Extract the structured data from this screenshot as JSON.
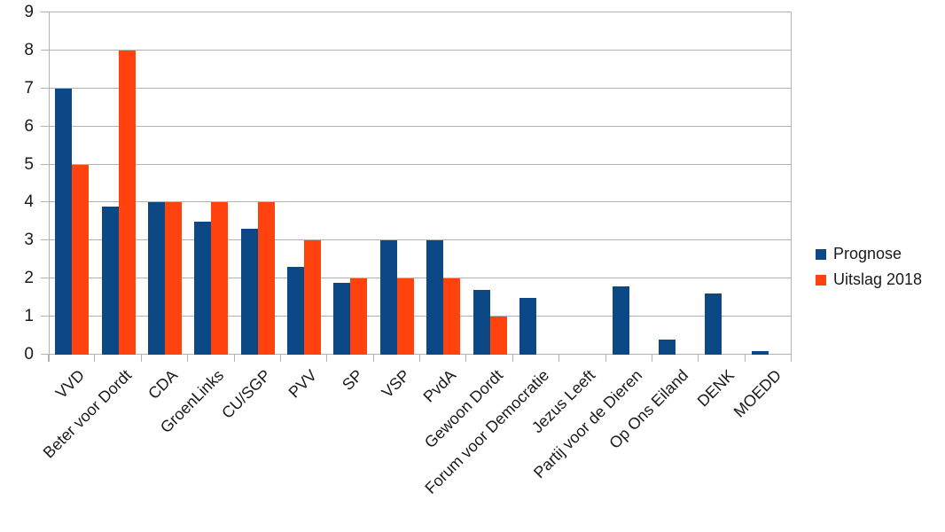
{
  "chart_data": {
    "type": "bar",
    "title": "",
    "xlabel": "",
    "ylabel": "",
    "categories": [
      "VVD",
      "Beter voor Dordt",
      "CDA",
      "GroenLinks",
      "CU/SGP",
      "PVV",
      "SP",
      "VSP",
      "PvdA",
      "Gewoon Dordt",
      "Forum voor Democratie",
      "Jezus Leeft",
      "Partij voor de Dieren",
      "Op Ons Eiland",
      "DENK",
      "MOEDD"
    ],
    "series": [
      {
        "name": "Prognose",
        "color": "#0d4886",
        "values": [
          7.0,
          3.9,
          4.0,
          3.5,
          3.3,
          2.3,
          1.9,
          3.0,
          3.0,
          1.7,
          1.5,
          0,
          1.8,
          0.4,
          1.6,
          0.1
        ]
      },
      {
        "name": "Uitslag 2018",
        "color": "#ff420e",
        "values": [
          5.0,
          8.0,
          4.0,
          4.0,
          4.0,
          3.0,
          2.0,
          2.0,
          2.0,
          1.0,
          0,
          0,
          0,
          0,
          0,
          0
        ]
      }
    ],
    "ylim": [
      0,
      9
    ],
    "yticks": [
      0,
      1,
      2,
      3,
      4,
      5,
      6,
      7,
      8,
      9
    ],
    "grid": true,
    "legend_position": "right",
    "colors": {
      "axis": "#b2b2b2",
      "text": "#1a1a1a",
      "background": "#ffffff"
    }
  }
}
